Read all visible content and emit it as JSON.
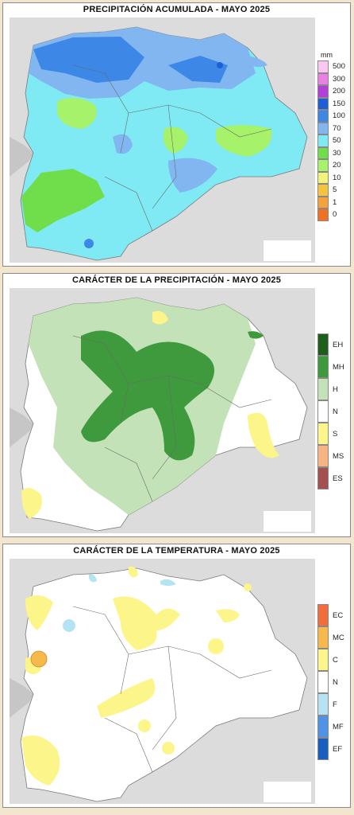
{
  "panels": [
    {
      "title": "PRECIPITACIÓN ACUMULADA - MAYO 2025",
      "unit": "mm",
      "legend": [
        {
          "label": "500",
          "color": "#fbc7f0"
        },
        {
          "label": "300",
          "color": "#ea7fe6"
        },
        {
          "label": "200",
          "color": "#b43ed8"
        },
        {
          "label": "150",
          "color": "#1f5fd6"
        },
        {
          "label": "100",
          "color": "#3d87e6"
        },
        {
          "label": "70",
          "color": "#81b6f0"
        },
        {
          "label": "50",
          "color": "#7fe9f4"
        },
        {
          "label": "30",
          "color": "#6fde4a"
        },
        {
          "label": "20",
          "color": "#a6f26a"
        },
        {
          "label": "10",
          "color": "#f3f37a"
        },
        {
          "label": "5",
          "color": "#f6c43c"
        },
        {
          "label": "1",
          "color": "#f7a13a"
        },
        {
          "label": "0",
          "color": "#f27022"
        }
      ]
    },
    {
      "title": "CARÁCTER DE LA PRECIPITACIÓN - MAYO 2025",
      "legend": [
        {
          "label": "EH",
          "color": "#1e5e1b"
        },
        {
          "label": "MH",
          "color": "#3f9a3e"
        },
        {
          "label": "H",
          "color": "#c4e2b7"
        },
        {
          "label": "N",
          "color": "#ffffff"
        },
        {
          "label": "S",
          "color": "#fbf58a"
        },
        {
          "label": "MS",
          "color": "#f7b482"
        },
        {
          "label": "ES",
          "color": "#a3504f"
        }
      ]
    },
    {
      "title": "CARÁCTER DE LA TEMPERATURA - MAYO 2025",
      "legend": [
        {
          "label": "EC",
          "color": "#f36c3d"
        },
        {
          "label": "MC",
          "color": "#f7b84c"
        },
        {
          "label": "C",
          "color": "#fbf58a"
        },
        {
          "label": "N",
          "color": "#ffffff"
        },
        {
          "label": "F",
          "color": "#b6e3f3"
        },
        {
          "label": "MF",
          "color": "#4f92e6"
        },
        {
          "label": "EF",
          "color": "#1a5fc0"
        }
      ]
    }
  ]
}
